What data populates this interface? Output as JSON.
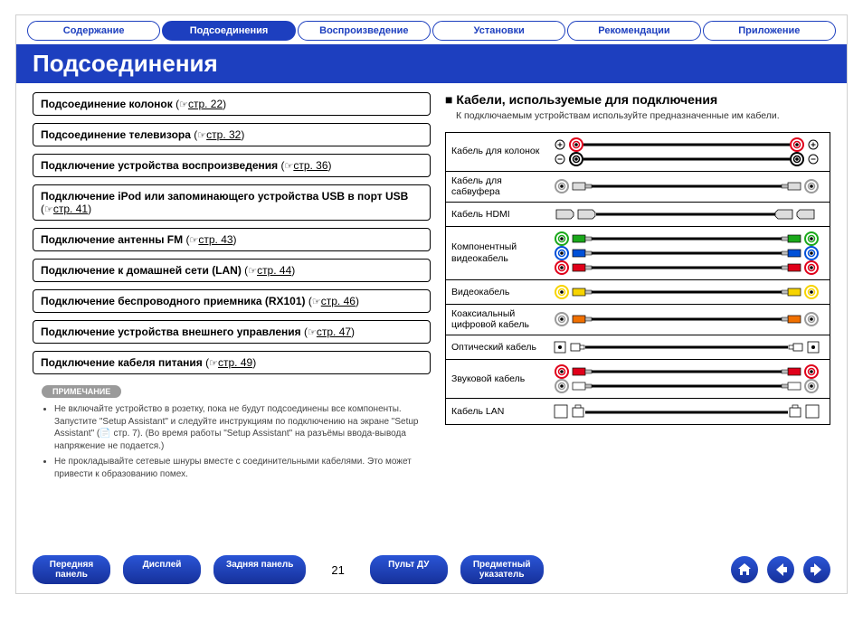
{
  "top_tabs": {
    "items": [
      {
        "label": "Содержание",
        "active": false
      },
      {
        "label": "Подсоединения",
        "active": true
      },
      {
        "label": "Воспроизведение",
        "active": false
      },
      {
        "label": "Установки",
        "active": false
      },
      {
        "label": "Рекомендации",
        "active": false
      },
      {
        "label": "Приложение",
        "active": false
      }
    ],
    "active_bg": "#1d3fbf",
    "active_fg": "#ffffff",
    "inactive_fg": "#1d3fbf"
  },
  "title": "Подсоединения",
  "topics": [
    {
      "text": "Подсоединение колонок",
      "page": "стр. 22"
    },
    {
      "text": "Подсоединение телевизора",
      "page": "стр. 32"
    },
    {
      "text": "Подключение устройства воспроизведения",
      "page": "стр. 36"
    },
    {
      "text": "Подключение iPod или запоминающего устройства USB в порт USB",
      "page": "стр. 41"
    },
    {
      "text": "Подключение антенны FM",
      "page": "стр. 43"
    },
    {
      "text": "Подключение к домашней сети (LAN)",
      "page": "стр. 44"
    },
    {
      "text": "Подключение беспроводного приемника (RX101)",
      "page": "стр. 46"
    },
    {
      "text": "Подключение устройства внешнего управления",
      "page": "стр. 47"
    },
    {
      "text": "Подключение кабеля питания",
      "page": "стр. 49"
    }
  ],
  "note_badge": "ПРИМЕЧАНИЕ",
  "notes": [
    "Не включайте устройство в розетку, пока не будут подсоединены все компоненты. Запустите \"Setup Assistant\" и следуйте инструкциям по подключению на экране \"Setup Assistant\" (📄 стр. 7). (Во время работы \"Setup Assistant\" на разъёмы ввода-вывода напряжение не подается.)",
    "Не прокладывайте сетевые шнуры вместе с соединительными кабелями. Это может привести к образованию помех."
  ],
  "cables_heading_marker": "■",
  "cables_heading": "Кабели, используемые для подключения",
  "cables_sub": "К подключаемым устройствам используйте предназначенные им кабели.",
  "cables": [
    {
      "name": "Кабель для колонок",
      "kind": "speaker"
    },
    {
      "name": "Кабель для сабвуфера",
      "kind": "sub"
    },
    {
      "name": "Кабель HDMI",
      "kind": "hdmi"
    },
    {
      "name": "Компонентный видеокабель",
      "kind": "component"
    },
    {
      "name": "Видеокабель",
      "kind": "video"
    },
    {
      "name": "Коаксиальный цифровой кабель",
      "kind": "coax"
    },
    {
      "name": "Оптический кабель",
      "kind": "optical"
    },
    {
      "name": "Звуковой кабель",
      "kind": "audio"
    },
    {
      "name": "Кабель LAN",
      "kind": "lan"
    }
  ],
  "cable_colors": {
    "red": "#e0001a",
    "black": "#000000",
    "grey": "#9a9a9a",
    "green": "#1aa81a",
    "blue": "#0050d8",
    "yellow": "#f7d400",
    "white": "#ffffff",
    "orange": "#f07000"
  },
  "bottom_nav": {
    "buttons_left": [
      {
        "label": "Передняя\nпанель"
      },
      {
        "label": "Дисплей"
      },
      {
        "label": "Задняя панель"
      }
    ],
    "page_number": "21",
    "buttons_right": [
      {
        "label": "Пульт ДУ"
      },
      {
        "label": "Предметный\nуказатель"
      }
    ],
    "circle_buttons": [
      "home",
      "back",
      "forward"
    ]
  }
}
